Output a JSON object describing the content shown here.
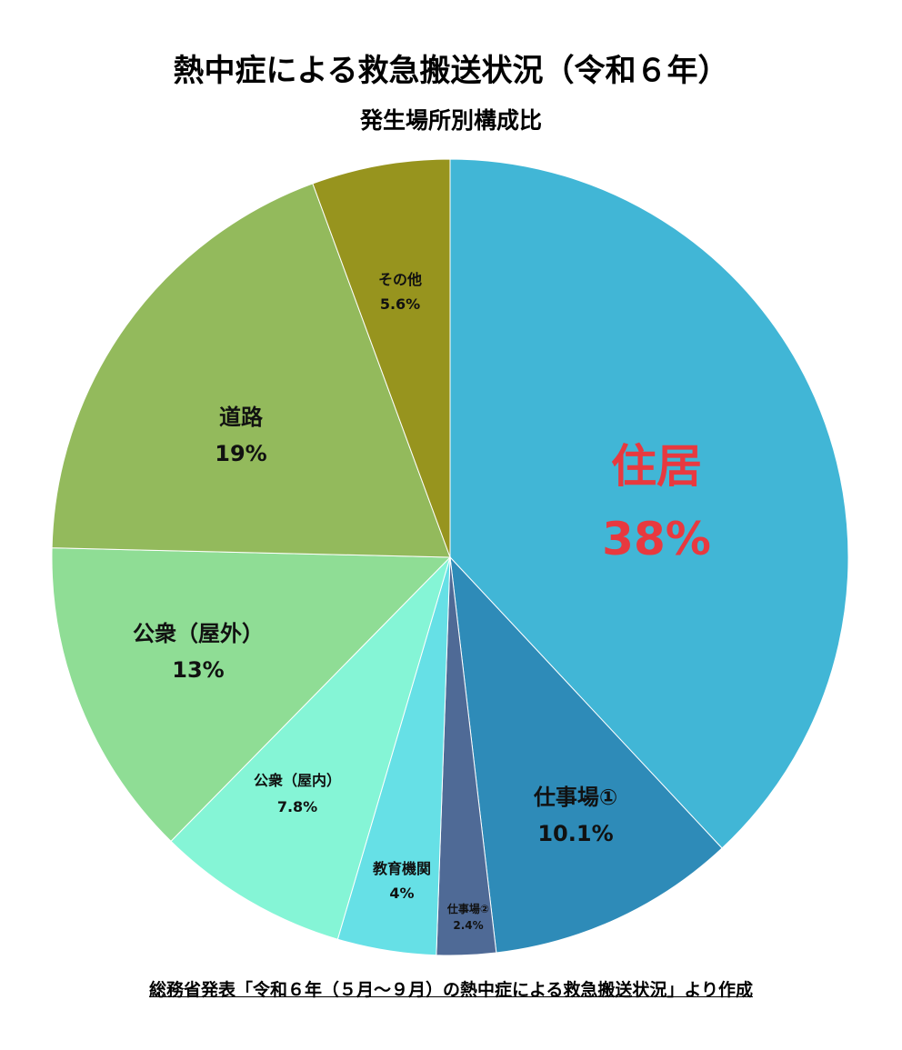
{
  "chart_data": {
    "type": "pie",
    "title": "熱中症による救急搬送状況（令和６年）",
    "subtitle": "発生場所別構成比",
    "source": "総務省発表「令和６年（５月～９月）の熱中症による救急搬送状況」より作成",
    "slices": [
      {
        "label": "住居",
        "value": 38,
        "value_label": "38%",
        "color": "#41B6D6",
        "label_color": "#E8393F"
      },
      {
        "label": "仕事場①",
        "value": 10.1,
        "value_label": "10.1%",
        "color": "#2E8BB8",
        "label_color": "#111111"
      },
      {
        "label": "仕事場②",
        "value": 2.4,
        "value_label": "2.4%",
        "color": "#4F6A96",
        "label_color": "#111111"
      },
      {
        "label": "教育機関",
        "value": 4,
        "value_label": "4%",
        "color": "#66E0E6",
        "label_color": "#111111"
      },
      {
        "label": "公衆（屋内）",
        "value": 7.8,
        "value_label": "7.8%",
        "color": "#85F5D6",
        "label_color": "#111111"
      },
      {
        "label": "公衆（屋外）",
        "value": 13,
        "value_label": "13%",
        "color": "#8FDD95",
        "label_color": "#111111"
      },
      {
        "label": "道路",
        "value": 19,
        "value_label": "19%",
        "color": "#93BA5C",
        "label_color": "#111111"
      },
      {
        "label": "その他",
        "value": 5.6,
        "value_label": "5.6%",
        "color": "#97941E",
        "label_color": "#111111"
      }
    ],
    "start_angle": "top",
    "direction": "clockwise",
    "legend": "none"
  }
}
